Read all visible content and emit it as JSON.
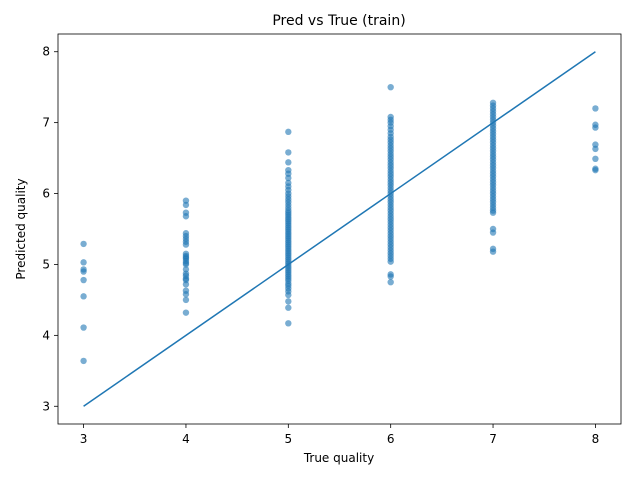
{
  "chart_data": {
    "type": "scatter",
    "title": "Pred vs True (train)",
    "xlabel": "True quality",
    "ylabel": "Predicted quality",
    "xlim": [
      2.75,
      8.25
    ],
    "ylim": [
      2.75,
      8.25
    ],
    "xticks": [
      3,
      4,
      5,
      6,
      7,
      8
    ],
    "yticks": [
      3,
      4,
      5,
      6,
      7,
      8
    ],
    "grid": false,
    "legend": "none",
    "colors": {
      "points": "#1f77b4",
      "line": "#1f77b4"
    },
    "reference_line": {
      "x": [
        3,
        8
      ],
      "y": [
        3,
        8
      ]
    },
    "points": {
      "3": [
        3.64,
        4.11,
        4.55,
        4.78,
        4.9,
        4.93,
        5.03,
        5.29
      ],
      "4": [
        4.32,
        4.5,
        4.58,
        4.63,
        4.72,
        4.78,
        4.8,
        4.84,
        4.87,
        4.93,
        5.0,
        5.02,
        5.05,
        5.08,
        5.1,
        5.12,
        5.15,
        5.28,
        5.32,
        5.36,
        5.4,
        5.44,
        5.68,
        5.73,
        5.84,
        5.9
      ],
      "5": [
        4.17,
        4.39,
        4.48,
        4.57,
        4.62,
        4.66,
        4.7,
        4.73,
        4.77,
        4.8,
        4.83,
        4.86,
        4.89,
        4.92,
        4.95,
        4.98,
        5.01,
        5.04,
        5.07,
        5.1,
        5.13,
        5.16,
        5.19,
        5.22,
        5.25,
        5.28,
        5.31,
        5.34,
        5.37,
        5.4,
        5.43,
        5.46,
        5.49,
        5.52,
        5.55,
        5.58,
        5.61,
        5.64,
        5.67,
        5.7,
        5.73,
        5.76,
        5.8,
        5.84,
        5.88,
        5.92,
        5.96,
        6.0,
        6.05,
        6.1,
        6.15,
        6.22,
        6.28,
        6.33,
        6.44,
        6.58,
        6.87
      ],
      "6": [
        4.75,
        4.83,
        4.86,
        5.04,
        5.08,
        5.12,
        5.16,
        5.2,
        5.24,
        5.28,
        5.32,
        5.36,
        5.4,
        5.44,
        5.48,
        5.52,
        5.56,
        5.6,
        5.64,
        5.68,
        5.72,
        5.76,
        5.8,
        5.84,
        5.88,
        5.92,
        5.96,
        6.0,
        6.04,
        6.08,
        6.12,
        6.16,
        6.2,
        6.24,
        6.28,
        6.32,
        6.36,
        6.4,
        6.44,
        6.48,
        6.52,
        6.56,
        6.6,
        6.64,
        6.68,
        6.72,
        6.76,
        6.8,
        6.85,
        6.9,
        6.95,
        7.0,
        7.04,
        7.08,
        7.5
      ],
      "7": [
        5.18,
        5.22,
        5.45,
        5.5,
        5.73,
        5.76,
        5.8,
        5.84,
        5.88,
        5.92,
        5.96,
        6.0,
        6.04,
        6.08,
        6.12,
        6.16,
        6.2,
        6.24,
        6.28,
        6.32,
        6.36,
        6.4,
        6.44,
        6.48,
        6.52,
        6.56,
        6.6,
        6.64,
        6.68,
        6.72,
        6.76,
        6.8,
        6.84,
        6.88,
        6.92,
        6.96,
        7.0,
        7.04,
        7.08,
        7.12,
        7.16,
        7.2,
        7.24,
        7.28
      ],
      "8": [
        6.33,
        6.35,
        6.49,
        6.63,
        6.69,
        6.93,
        6.97,
        7.2
      ]
    }
  }
}
